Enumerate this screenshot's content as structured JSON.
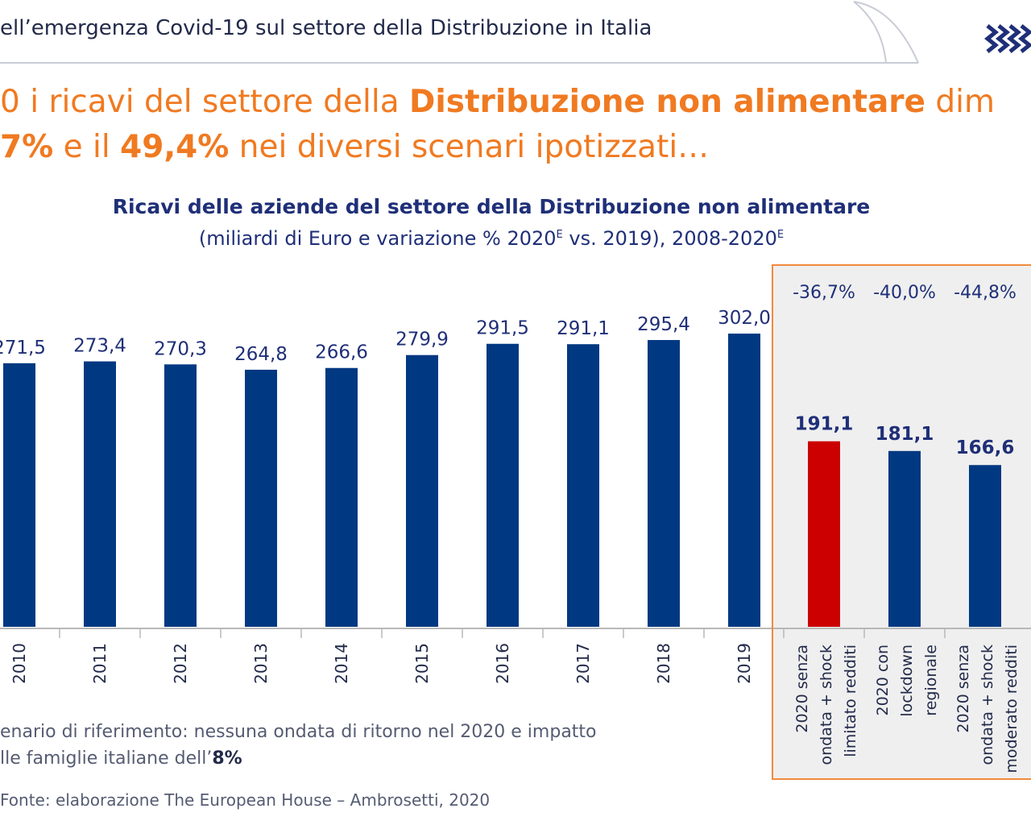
{
  "header": {
    "title": "ell’emergenza Covid-19 sul settore della Distribuzione in Italia"
  },
  "headline": {
    "line1_pre": "0 i ricavi del settore della ",
    "line1_bold": "Distribuzione non alimentare",
    "line1_post": " dim",
    "line2_bold1": "7%",
    "line2_mid": " e il ",
    "line2_bold2": "49,4%",
    "line2_post": " nei diversi scenari ipotizzati…"
  },
  "footnote": {
    "line1": "enario di riferimento: nessuna ondata di ritorno nel 2020 e impatto",
    "line2_pre": "lle famiglie italiane dell’",
    "line2_bold": "8%"
  },
  "source": "Fonte: elaborazione The European House – Ambrosetti, 2020",
  "colors": {
    "bar": "#003882",
    "highlight": "#cc0000",
    "accent": "#f07a21",
    "panel_border": "#f08a3c"
  },
  "chart_data": {
    "type": "bar",
    "title": "Ricavi delle aziende del settore della Distribuzione non alimentare",
    "subtitle_pre": "(miliardi di Euro e variazione % 2020",
    "subtitle_sup1": "E",
    "subtitle_mid": " vs. 2019), 2008-2020",
    "subtitle_sup2": "E",
    "categories": [
      "2010",
      "2011",
      "2012",
      "2013",
      "2014",
      "2015",
      "2016",
      "2017",
      "2018",
      "2019"
    ],
    "values": [
      271.5,
      273.4,
      270.3,
      264.8,
      266.6,
      279.9,
      291.5,
      291.1,
      295.4,
      302.0
    ],
    "value_labels": [
      "271,5",
      "273,4",
      "270,3",
      "264,8",
      "266,6",
      "279,9",
      "291,5",
      "291,1",
      "295,4",
      "302,0"
    ],
    "scenarios": [
      {
        "label_lines": [
          "2020 senza",
          "ondata + shock",
          "limitato redditi"
        ],
        "value": 191.1,
        "value_label": "191,1",
        "change": "-36,7%",
        "highlight": true
      },
      {
        "label_lines": [
          "2020 con",
          "lockdown",
          "regionale"
        ],
        "value": 181.1,
        "value_label": "181,1",
        "change": "-40,0%",
        "highlight": false
      },
      {
        "label_lines": [
          "2020 senza",
          "ondata + shock",
          "moderato redditi"
        ],
        "value": 166.6,
        "value_label": "166,6",
        "change": "-44,8%",
        "highlight": false
      }
    ]
  }
}
